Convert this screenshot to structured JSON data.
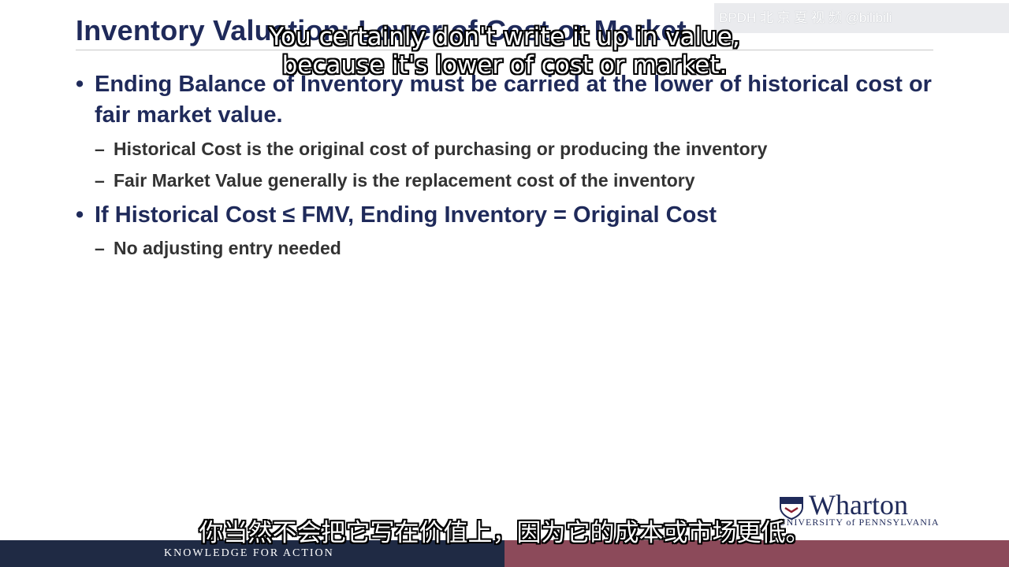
{
  "slide": {
    "title": "Inventory Valuation: Lower of Cost or Market",
    "bullets": [
      {
        "text": "Ending Balance of Inventory must be carried at the lower of historical cost or fair market value.",
        "subs": [
          "Historical Cost is the original cost of purchasing or producing the inventory",
          "Fair Market Value generally is the replacement cost of the inventory"
        ]
      },
      {
        "text": "If Historical Cost ≤ FMV, Ending Inventory = Original Cost",
        "subs": [
          "No adjusting entry needed"
        ]
      }
    ]
  },
  "captions": {
    "english_line1": "You certainly don't write it up in value,",
    "english_line2": "because it's lower of cost or market.",
    "chinese": "你当然不会把它写在价值上，因为它的成本或市场更低。"
  },
  "watermark": "BPDH  北 京 夏 视 频 @bilibili",
  "footer": {
    "tagline": "KNOWLEDGE FOR ACTION"
  },
  "logo": {
    "wordmark": "Wharton",
    "subtitle": "UNIVERSITY of PENNSYLVANIA"
  },
  "colors": {
    "title": "#1f2a5a",
    "footer_left": "#1f2a44",
    "footer_right": "#8c4a5a"
  }
}
